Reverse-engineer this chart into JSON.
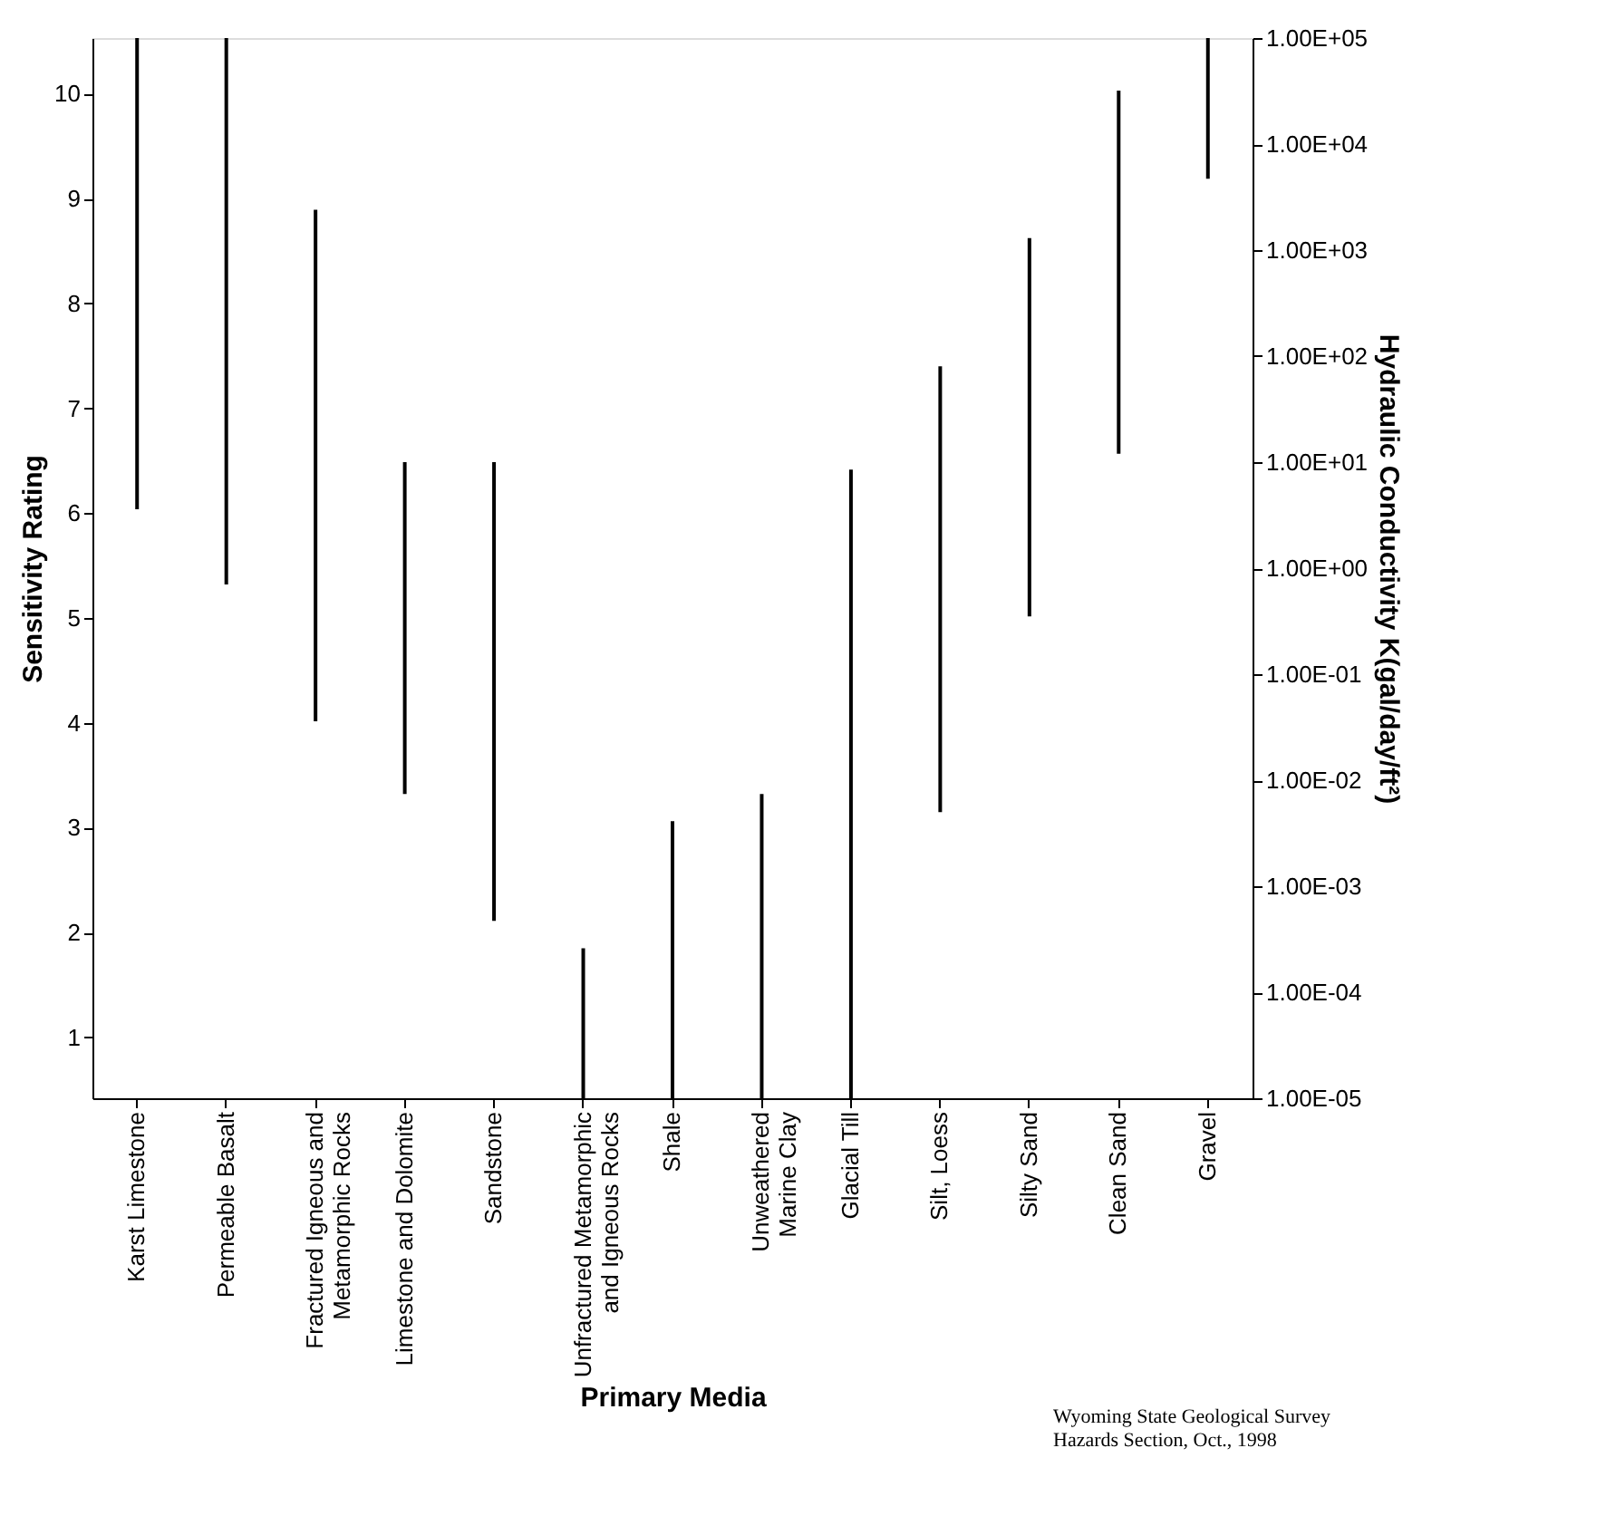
{
  "chart_data": {
    "type": "bar",
    "xlabel": "Primary Media",
    "ylabel": "Sensitivity   Rating",
    "y2label": "Hydraulic Conductivity K(gal/day/ft²)",
    "categories": [
      "Karst Limestone",
      "Permeable Basalt",
      "Fractured Igneous and\nMetamorphic Rocks",
      "Limestone and Dolomite",
      "Sandstone",
      "Unfractured Metamorphic\nand Igneous Rocks",
      "Shale",
      "Unweathered\nMarine Clay",
      "Glacial Till",
      "Silt, Loess",
      "Silty Sand",
      "Clean Sand",
      "Gravel"
    ],
    "series": [
      {
        "axis": "y2",
        "color": "#000000",
        "base": [
          3.6,
          0.7,
          0.036,
          0.0074,
          0.00047,
          1e-05,
          1e-05,
          1e-05,
          1e-05,
          0.005,
          0.35,
          12,
          4700
        ],
        "values": [
          99996,
          99999,
          2400,
          10,
          10,
          0.00025,
          0.0041,
          0.0074,
          8.5,
          80,
          1300,
          32000,
          95300
        ]
      }
    ],
    "ylim": [
      0.42,
      10.53
    ],
    "yticks": [
      1,
      2,
      3,
      4,
      5,
      6,
      7,
      8,
      9,
      10
    ],
    "y2lim": [
      1e-05,
      100000
    ],
    "y2ticks": [
      {
        "value": 1e-05,
        "label": "1.00E-05"
      },
      {
        "value": 0.0001,
        "label": "1.00E-04"
      },
      {
        "value": 0.001,
        "label": "1.00E-03"
      },
      {
        "value": 0.01,
        "label": "1.00E-02"
      },
      {
        "value": 0.1,
        "label": "1.00E-01"
      },
      {
        "value": 1,
        "label": "1.00E+00"
      },
      {
        "value": 10,
        "label": "1.00E+01"
      },
      {
        "value": 100,
        "label": "1.00E+02"
      },
      {
        "value": 1000,
        "label": "1.00E+03"
      },
      {
        "value": 10000,
        "label": "1.00E+04"
      },
      {
        "value": 100000,
        "label": "1.00E+05"
      }
    ],
    "log": "y2",
    "grid": false,
    "annotations": [
      "Wyoming State Geological Survey\nHazards Section, Oct., 1998"
    ]
  }
}
